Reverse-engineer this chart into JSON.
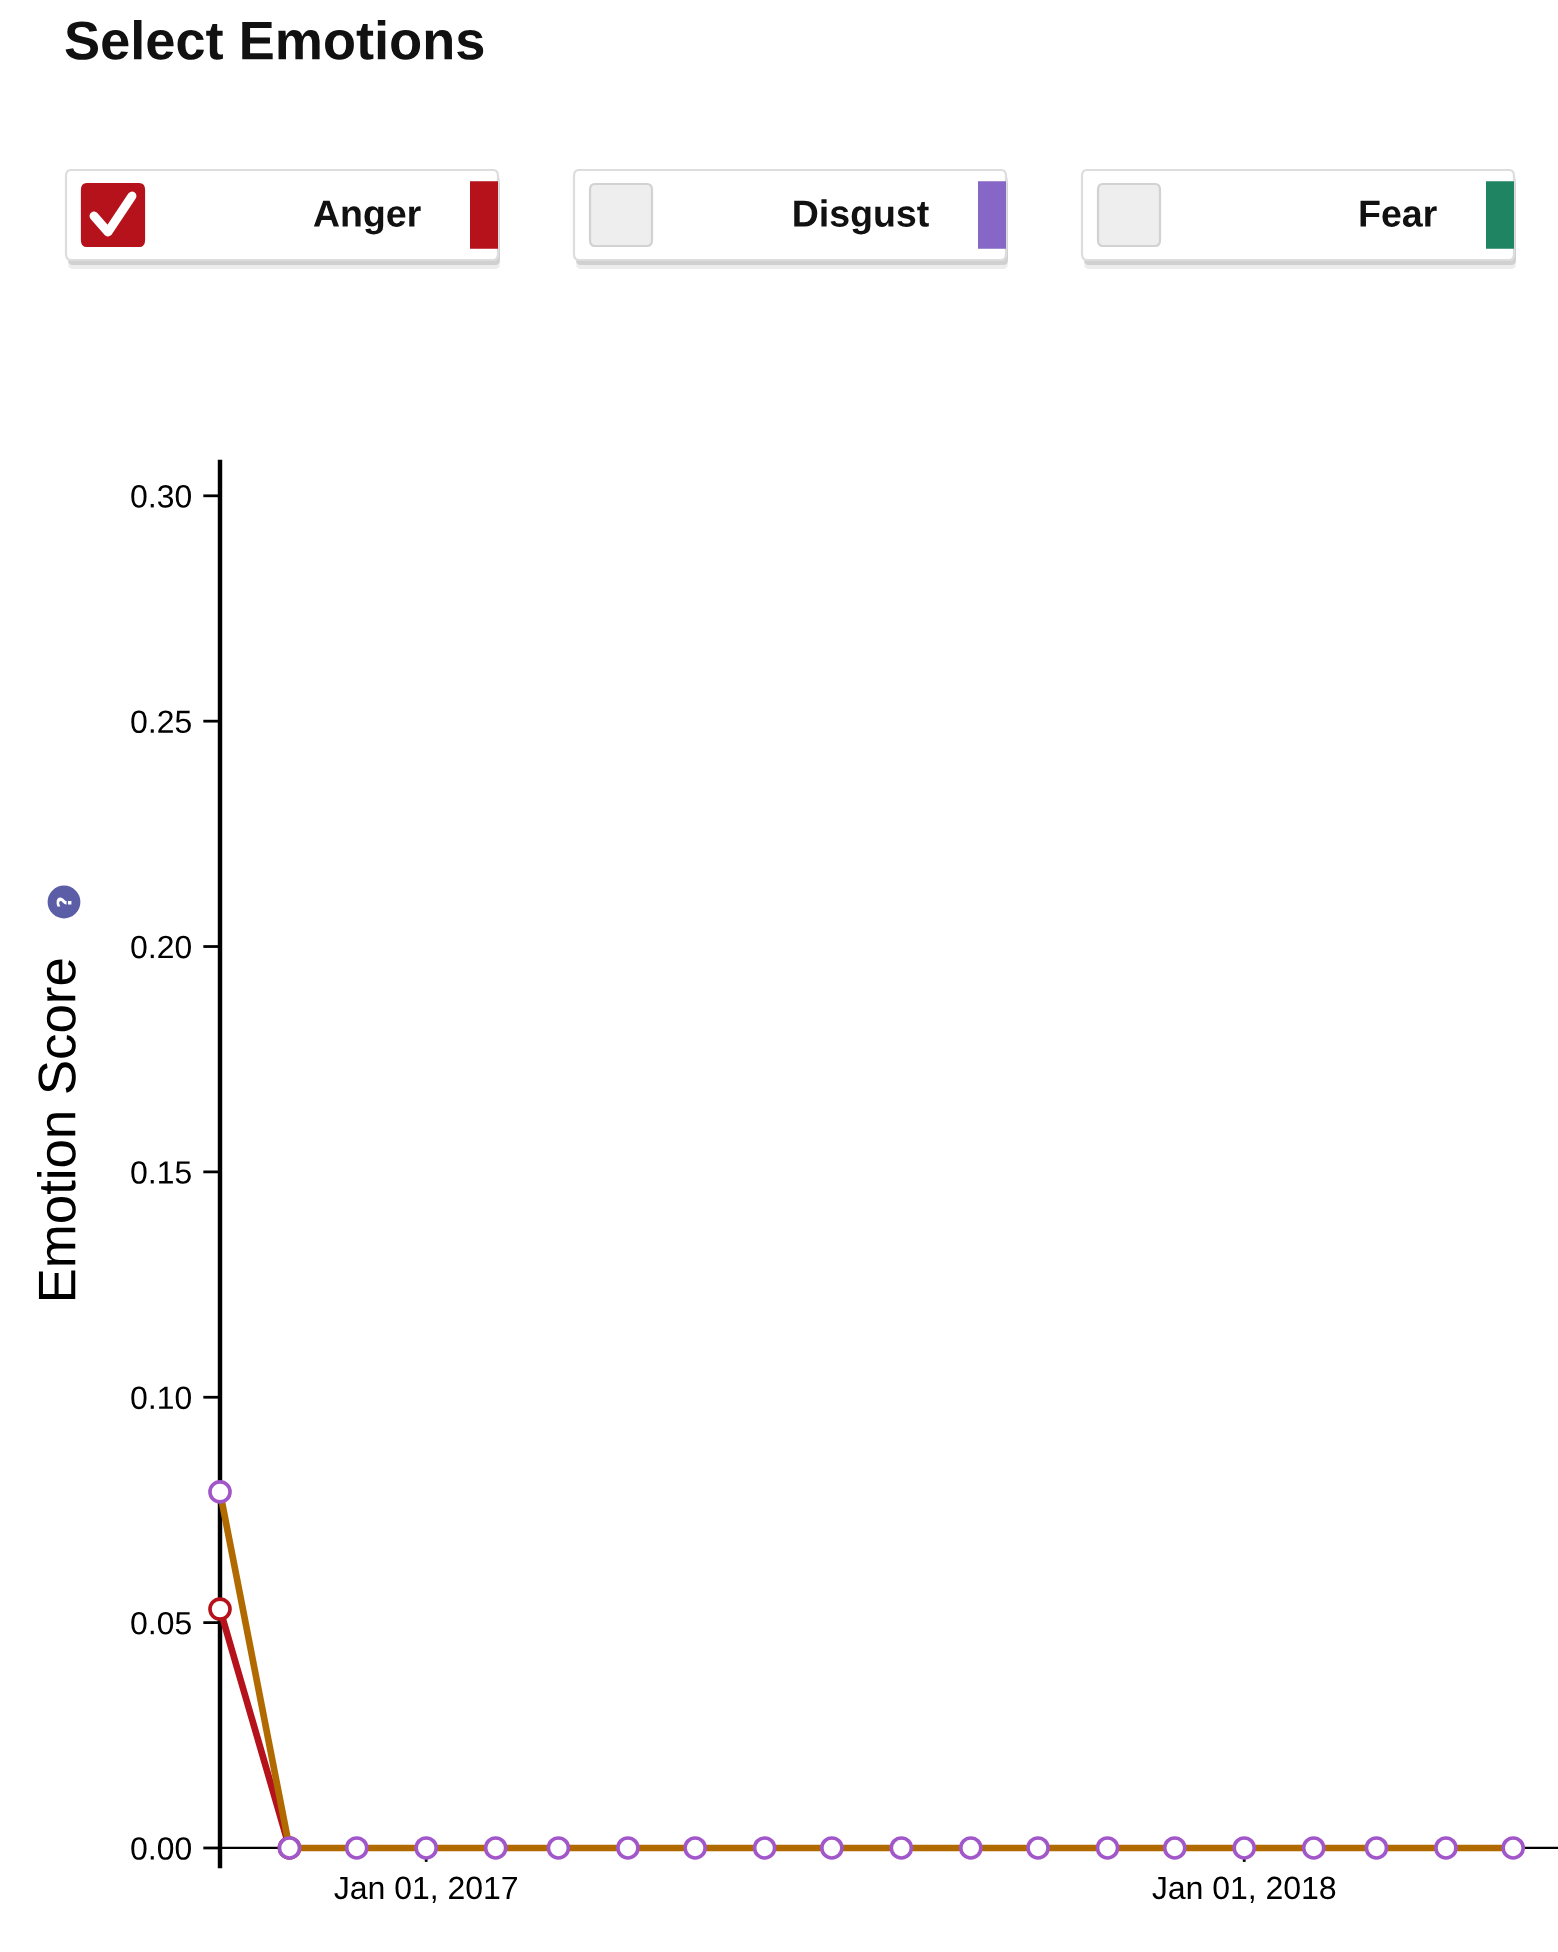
{
  "chart_data": {
    "type": "line",
    "title": "Select Emotions",
    "ylabel": "Emotion Score",
    "x": [
      "2016-10-01",
      "2016-11-01",
      "2016-12-01",
      "2017-01-01",
      "2017-02-01",
      "2017-03-01",
      "2017-04-01",
      "2017-05-01",
      "2017-06-01",
      "2017-07-01",
      "2017-08-01",
      "2017-09-01",
      "2017-10-01",
      "2017-11-01",
      "2017-12-01",
      "2018-01-01",
      "2018-02-01",
      "2018-03-01",
      "2018-04-01",
      "2018-05-01"
    ],
    "series": [
      {
        "name": "Anger",
        "color": "#b5121b",
        "values": [
          0.053,
          0,
          null,
          null,
          null,
          null,
          null,
          null,
          null,
          null,
          null,
          null,
          null,
          null,
          null,
          null,
          null,
          null,
          null,
          null
        ]
      },
      {
        "name": "Disgust",
        "color": "#8666c6",
        "values": [
          null,
          null,
          null,
          null,
          null,
          null,
          null,
          null,
          null,
          null,
          null,
          null,
          null,
          null,
          null,
          null,
          null,
          null,
          null,
          null
        ]
      },
      {
        "name": "Fear",
        "color": "#1e8462",
        "values": [
          null,
          null,
          null,
          null,
          null,
          null,
          null,
          null,
          null,
          null,
          null,
          null,
          null,
          null,
          null,
          null,
          null,
          null,
          null,
          null
        ]
      },
      {
        "color": "#b06a00",
        "colors": [
          "#a157c9",
          "#a157c9",
          "#a157c9",
          "#a157c9",
          "#a157c9",
          "#a157c9",
          "#a157c9",
          "#a157c9",
          "#a157c9",
          "#a157c9",
          "#a157c9",
          "#a157c9",
          "#a157c9",
          "#a157c9",
          "#a157c9",
          "#a157c9",
          "#a157c9",
          "#a157c9",
          "#a157c9",
          "#a157c9"
        ],
        "values": [
          0.079,
          0,
          0,
          0,
          0,
          0,
          0,
          0,
          0,
          0,
          0,
          0,
          0,
          0,
          0,
          0,
          0,
          0,
          0,
          0
        ]
      }
    ],
    "xlim": [
      "2016-10-01",
      "2018-05-21"
    ],
    "xticks": [
      {
        "value": "2017-01-01",
        "label": "Jan 01, 2017"
      },
      {
        "value": "2018-01-01",
        "label": "Jan 01, 2018"
      }
    ],
    "ylim": [
      -0.004,
      0.3075
    ],
    "yticks": [
      {
        "value": 0,
        "label": "0.00"
      },
      {
        "value": 0.05,
        "label": "0.05"
      },
      {
        "value": 0.1,
        "label": "0.10"
      },
      {
        "value": 0.15,
        "label": "0.15"
      },
      {
        "value": 0.2,
        "label": "0.20"
      },
      {
        "value": 0.25,
        "label": "0.25"
      },
      {
        "value": 0.3,
        "label": "0.30"
      }
    ],
    "marker": "circle",
    "line_style": "solid",
    "legend": "top"
  }
}
